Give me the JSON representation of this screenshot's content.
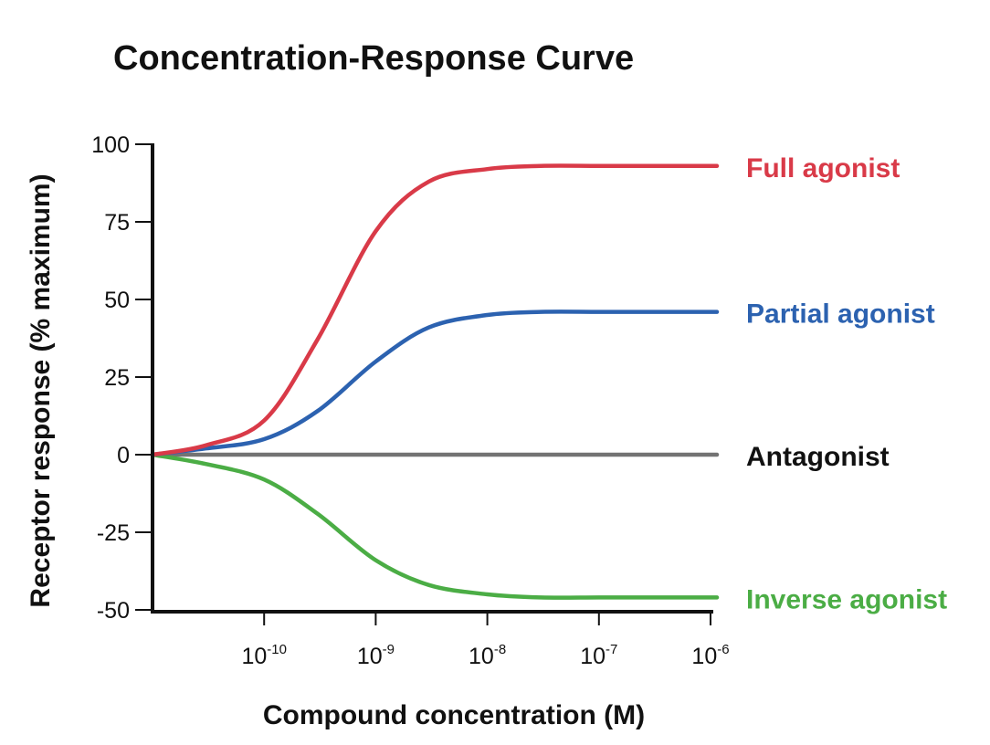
{
  "chart_data": {
    "type": "line",
    "title": "Concentration-Response Curve",
    "xlabel": "Compound concentration (M)",
    "ylabel": "Receptor response (% maximum)",
    "x_scale": "log",
    "xlim": [
      1e-11,
      1e-06
    ],
    "ylim": [
      -50,
      100
    ],
    "y_ticks": [
      {
        "value": 100,
        "label": "100"
      },
      {
        "value": 75,
        "label": "75"
      },
      {
        "value": 50,
        "label": "50"
      },
      {
        "value": 25,
        "label": "25"
      },
      {
        "value": 0,
        "label": "0"
      },
      {
        "value": -25,
        "label": "-25"
      },
      {
        "value": -50,
        "label": "-50"
      }
    ],
    "x_ticks": [
      {
        "value": 1e-10,
        "base": "10",
        "exp": "-10"
      },
      {
        "value": 1e-09,
        "base": "10",
        "exp": "-9"
      },
      {
        "value": 1e-08,
        "base": "10",
        "exp": "-8"
      },
      {
        "value": 1e-07,
        "base": "10",
        "exp": "-7"
      },
      {
        "value": 1e-06,
        "base": "10",
        "exp": "-6"
      }
    ],
    "x": [
      1e-11,
      3e-11,
      1e-10,
      3e-10,
      1e-09,
      3e-09,
      1e-08,
      3e-08,
      1e-07,
      3e-07,
      1e-06
    ],
    "series": [
      {
        "name": "Full agonist",
        "color": "#d93a48",
        "values": [
          0,
          3,
          11,
          37,
          72,
          88,
          92,
          93,
          93,
          93,
          93
        ]
      },
      {
        "name": "Partial agonist",
        "color": "#2c62b0",
        "values": [
          0,
          2,
          5,
          14,
          30,
          41,
          45,
          46,
          46,
          46,
          46
        ]
      },
      {
        "name": "Antagonist",
        "color": "#737373",
        "label_color": "#111111",
        "values": [
          0,
          0,
          0,
          0,
          0,
          0,
          0,
          0,
          0,
          0,
          0
        ]
      },
      {
        "name": "Inverse agonist",
        "color": "#4bad45",
        "values": [
          0,
          -3,
          -8,
          -19,
          -34,
          -42,
          -45,
          -46,
          -46,
          -46,
          -46
        ]
      }
    ],
    "grid": false,
    "legend": "right-inline"
  }
}
